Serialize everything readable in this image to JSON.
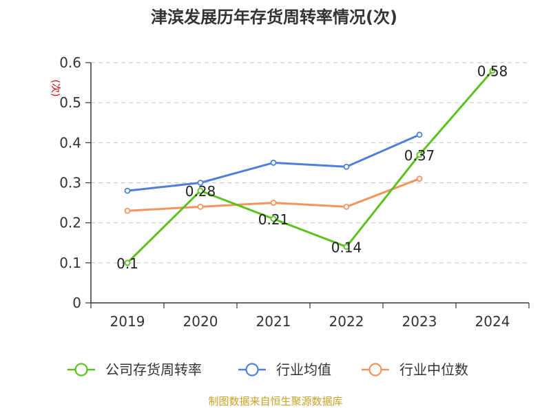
{
  "colors": {
    "company": "#5bc21d",
    "industry_avg": "#4f7fdc",
    "industry_median": "#f4935c",
    "grid": "#cccccc",
    "axis": "#333333"
  },
  "source": "制图数据来自恒生聚源数据库",
  "chart_data": {
    "type": "line",
    "title": "津滨发展历年存货周转率情况(次)",
    "xlabel": "",
    "ylabel": "(次)",
    "categories": [
      "2019",
      "2020",
      "2021",
      "2022",
      "2023",
      "2024"
    ],
    "ylim": [
      0,
      0.6
    ],
    "yticks": [
      "0",
      "0.1",
      "0.2",
      "0.3",
      "0.4",
      "0.5",
      "0.6"
    ],
    "grid": true,
    "legend_position": "bottom",
    "series": [
      {
        "name": "公司存货周转率",
        "values": [
          0.1,
          0.28,
          0.21,
          0.14,
          0.37,
          0.58
        ],
        "data_labels": [
          "0.1",
          "0.28",
          "0.21",
          "0.14",
          "0.37",
          "0.58"
        ]
      },
      {
        "name": "行业均值",
        "values": [
          0.28,
          0.3,
          0.35,
          0.34,
          0.42,
          null
        ]
      },
      {
        "name": "行业中位数",
        "values": [
          0.23,
          0.24,
          0.25,
          0.24,
          0.31,
          null
        ]
      }
    ]
  }
}
